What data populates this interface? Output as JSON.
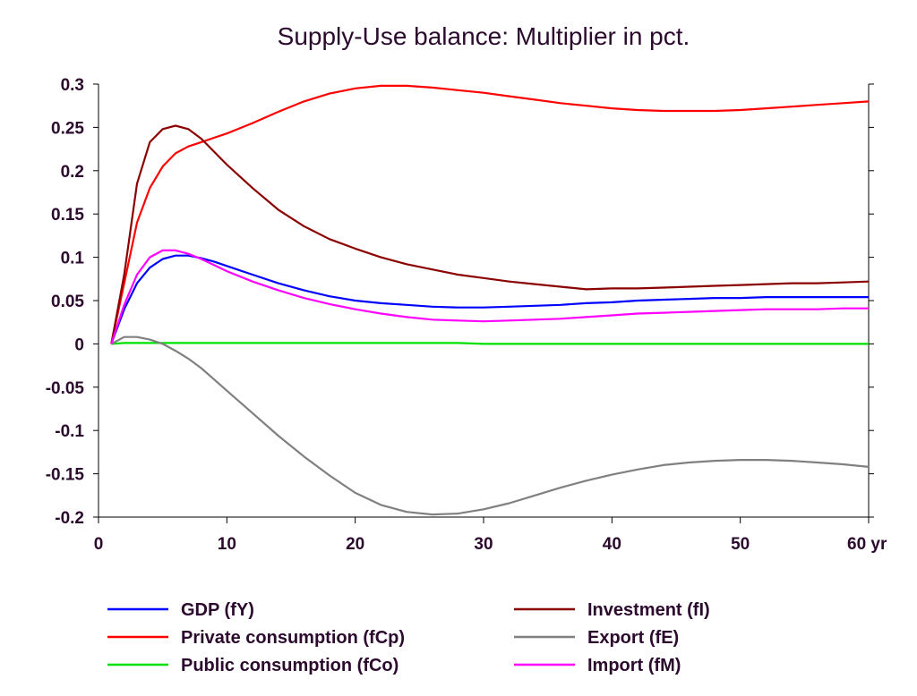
{
  "chart_data": {
    "type": "line",
    "title": "Supply-Use balance: Multiplier in pct.",
    "xlabel": "",
    "ylabel": "",
    "x_unit": "yr",
    "xlim": [
      0,
      60
    ],
    "ylim": [
      -0.2,
      0.3
    ],
    "x_ticks": [
      0,
      10,
      20,
      30,
      40,
      50,
      60
    ],
    "x_tick_labels": [
      "0",
      "10",
      "20",
      "30",
      "40",
      "50",
      "60 yr"
    ],
    "y_ticks": [
      0.3,
      0.25,
      0.2,
      0.15,
      0.1,
      0.05,
      0,
      -0.05,
      -0.1,
      -0.15,
      -0.2
    ],
    "y_tick_labels": [
      "0.3",
      "0.25",
      "0.2",
      "0.15",
      "0.1",
      "0.05",
      "0",
      "-0.05",
      "-0.1",
      "-0.15",
      "-0.2"
    ],
    "grid": false,
    "legend_position": "bottom",
    "x": [
      1,
      2,
      3,
      4,
      5,
      6,
      7,
      8,
      9,
      10,
      12,
      14,
      16,
      18,
      20,
      22,
      24,
      26,
      28,
      30,
      32,
      34,
      36,
      38,
      40,
      42,
      44,
      46,
      48,
      50,
      52,
      54,
      56,
      58,
      60
    ],
    "series": [
      {
        "name": "GDP (fY)",
        "color": "#0000ff",
        "values": [
          0,
          0.04,
          0.07,
          0.088,
          0.098,
          0.102,
          0.102,
          0.099,
          0.095,
          0.09,
          0.08,
          0.07,
          0.062,
          0.055,
          0.05,
          0.047,
          0.045,
          0.043,
          0.042,
          0.042,
          0.043,
          0.044,
          0.045,
          0.047,
          0.048,
          0.05,
          0.051,
          0.052,
          0.053,
          0.053,
          0.054,
          0.054,
          0.054,
          0.054,
          0.054
        ]
      },
      {
        "name": "Private consumption (fCp)",
        "color": "#ff0000",
        "values": [
          0,
          0.07,
          0.14,
          0.18,
          0.205,
          0.22,
          0.228,
          0.233,
          0.238,
          0.243,
          0.255,
          0.268,
          0.28,
          0.289,
          0.295,
          0.298,
          0.298,
          0.296,
          0.293,
          0.29,
          0.286,
          0.282,
          0.278,
          0.275,
          0.272,
          0.27,
          0.269,
          0.269,
          0.269,
          0.27,
          0.272,
          0.274,
          0.276,
          0.278,
          0.28
        ]
      },
      {
        "name": "Public consumption (fCo)",
        "color": "#00e000",
        "values": [
          0,
          0.001,
          0.001,
          0.001,
          0.001,
          0.001,
          0.001,
          0.001,
          0.001,
          0.001,
          0.001,
          0.001,
          0.001,
          0.001,
          0.001,
          0.001,
          0.001,
          0.001,
          0.001,
          0,
          0,
          0,
          0,
          0,
          0,
          0,
          0,
          0,
          0,
          0,
          0,
          0,
          0,
          0,
          0
        ]
      },
      {
        "name": "Investment (fI)",
        "color": "#8b0000",
        "values": [
          0,
          0.08,
          0.185,
          0.233,
          0.248,
          0.252,
          0.248,
          0.237,
          0.222,
          0.207,
          0.18,
          0.155,
          0.136,
          0.121,
          0.11,
          0.1,
          0.092,
          0.086,
          0.08,
          0.076,
          0.072,
          0.069,
          0.066,
          0.063,
          0.064,
          0.064,
          0.065,
          0.066,
          0.067,
          0.068,
          0.069,
          0.07,
          0.07,
          0.071,
          0.072
        ]
      },
      {
        "name": "Export (fE)",
        "color": "#808080",
        "values": [
          0,
          0.008,
          0.008,
          0.005,
          0,
          -0.008,
          -0.017,
          -0.028,
          -0.041,
          -0.054,
          -0.08,
          -0.106,
          -0.13,
          -0.152,
          -0.172,
          -0.186,
          -0.194,
          -0.197,
          -0.196,
          -0.191,
          -0.184,
          -0.175,
          -0.166,
          -0.158,
          -0.151,
          -0.145,
          -0.14,
          -0.137,
          -0.135,
          -0.134,
          -0.134,
          -0.135,
          -0.137,
          -0.139,
          -0.142
        ]
      },
      {
        "name": "Import (fM)",
        "color": "#ff00ff",
        "values": [
          0,
          0.045,
          0.08,
          0.1,
          0.108,
          0.108,
          0.104,
          0.098,
          0.091,
          0.084,
          0.072,
          0.062,
          0.053,
          0.046,
          0.04,
          0.035,
          0.031,
          0.028,
          0.027,
          0.026,
          0.027,
          0.028,
          0.029,
          0.031,
          0.033,
          0.035,
          0.036,
          0.037,
          0.038,
          0.039,
          0.04,
          0.04,
          0.04,
          0.041,
          0.041
        ]
      }
    ]
  }
}
